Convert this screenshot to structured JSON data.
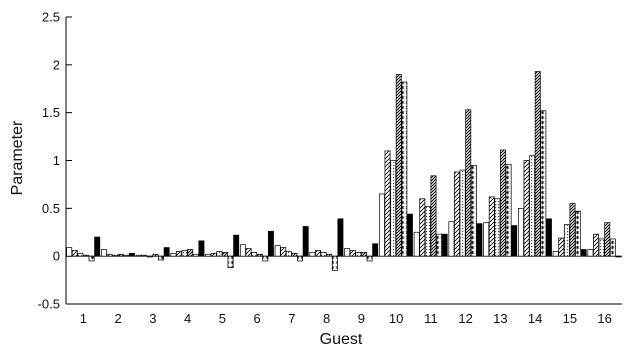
{
  "chart_data": {
    "type": "bar",
    "xlabel": "Guest",
    "ylabel": "Parameter",
    "ylim": [
      -0.5,
      2.5
    ],
    "yticks": [
      -0.5,
      0,
      0.5,
      1,
      1.5,
      2,
      2.5
    ],
    "ytick_labels": [
      "-0.5",
      "0",
      "0.5",
      "1",
      "1.5",
      "2",
      "2.5"
    ],
    "grid": false,
    "legend": "none",
    "categories": [
      "1",
      "2",
      "3",
      "4",
      "5",
      "6",
      "7",
      "8",
      "9",
      "10",
      "11",
      "12",
      "13",
      "14",
      "15",
      "16"
    ],
    "series": [
      {
        "pattern": "white",
        "values": [
          0.09,
          0.07,
          0.01,
          0.03,
          0.02,
          0.12,
          0.11,
          0.04,
          0.08,
          0.65,
          0.25,
          0.36,
          0.35,
          0.5,
          0.05,
          0.07
        ]
      },
      {
        "pattern": "diagonal-light",
        "values": [
          0.06,
          0.02,
          0.01,
          0.05,
          0.03,
          0.08,
          0.09,
          0.06,
          0.06,
          1.1,
          0.6,
          0.88,
          0.62,
          1.0,
          0.19,
          0.23
        ]
      },
      {
        "pattern": "dotted-grey",
        "values": [
          0.03,
          0.01,
          0.0,
          0.06,
          0.05,
          0.04,
          0.05,
          0.04,
          0.04,
          1.0,
          0.52,
          0.9,
          0.6,
          1.05,
          0.33,
          0.18
        ]
      },
      {
        "pattern": "diagonal-dense",
        "values": [
          0.01,
          0.02,
          0.02,
          0.07,
          0.04,
          0.02,
          0.03,
          0.02,
          0.04,
          1.9,
          0.84,
          1.53,
          1.11,
          1.93,
          0.55,
          0.35
        ]
      },
      {
        "pattern": "starred",
        "values": [
          -0.05,
          0.01,
          -0.04,
          0.02,
          -0.12,
          -0.05,
          -0.05,
          -0.15,
          -0.05,
          1.82,
          0.23,
          0.95,
          0.96,
          1.52,
          0.47,
          0.18
        ]
      },
      {
        "pattern": "black",
        "values": [
          0.2,
          0.03,
          0.09,
          0.16,
          0.22,
          0.26,
          0.31,
          0.39,
          0.13,
          0.44,
          0.23,
          0.34,
          0.32,
          0.39,
          0.07,
          0.0
        ]
      }
    ]
  }
}
